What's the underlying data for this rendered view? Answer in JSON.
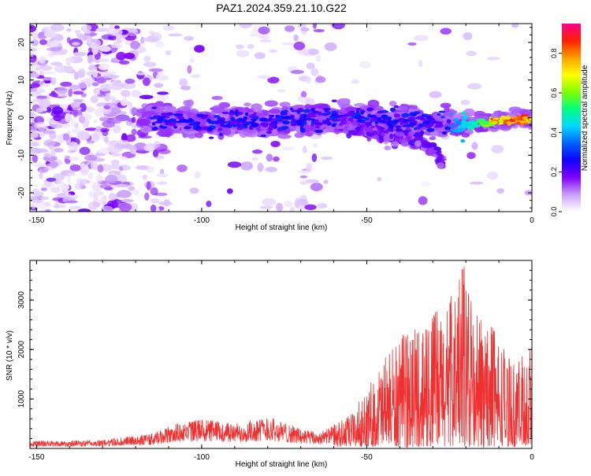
{
  "figure": {
    "title": "PAZ1.2024.359.21.10.G22"
  },
  "chart_data": [
    {
      "type": "heatmap",
      "xlabel": "Height of straight line (km)",
      "ylabel": "Frequency (Hz)",
      "xlim": [
        -152,
        0
      ],
      "ylim": [
        -25,
        25
      ],
      "x_ticks": [
        "-150",
        "-100",
        "-50",
        "0"
      ],
      "y_ticks": [
        "20",
        "10",
        "0",
        "-10",
        "-20"
      ],
      "colorbar": {
        "label": "Normalized spectral amplitude",
        "range": [
          0,
          0.95
        ],
        "ticks": [
          "0.0",
          "0.2",
          "0.4",
          "0.6",
          "0.8"
        ],
        "colormap": [
          "#ffffff",
          "#c8a0ff",
          "#8000ff",
          "#1000ff",
          "#0060ff",
          "#00d8ff",
          "#00ff80",
          "#80ff00",
          "#ffff00",
          "#ffa000",
          "#ff2000",
          "#ff0090"
        ]
      },
      "ridge": [
        {
          "x": -115,
          "y": -0.8
        },
        {
          "x": -100,
          "y": -1.0
        },
        {
          "x": -80,
          "y": -1.0
        },
        {
          "x": -60,
          "y": 0.0
        },
        {
          "x": -45,
          "y": -1.0
        },
        {
          "x": -30,
          "y": -1.5
        },
        {
          "x": -20,
          "y": -2.0
        },
        {
          "x": -10,
          "y": -0.8
        },
        {
          "x": 0,
          "y": -0.5
        }
      ],
      "secondary_branch": [
        {
          "x": -58,
          "y": -2
        },
        {
          "x": -48,
          "y": -4
        },
        {
          "x": -38,
          "y": -6
        },
        {
          "x": -30,
          "y": -8
        },
        {
          "x": -27,
          "y": -12
        }
      ]
    },
    {
      "type": "line",
      "xlabel": "Height of straight line (km)",
      "ylabel": "SNR (10 * v/v)",
      "xlim": [
        -152,
        0
      ],
      "ylim": [
        0,
        3800
      ],
      "x_ticks": [
        "-150",
        "-100",
        "-50",
        "0"
      ],
      "y_ticks": [
        "1000",
        "2000",
        "3000"
      ],
      "color": "#f03030",
      "envelope": [
        {
          "x": -152,
          "y": 150
        },
        {
          "x": -130,
          "y": 170
        },
        {
          "x": -115,
          "y": 300
        },
        {
          "x": -108,
          "y": 500
        },
        {
          "x": -100,
          "y": 600
        },
        {
          "x": -90,
          "y": 500
        },
        {
          "x": -80,
          "y": 650
        },
        {
          "x": -70,
          "y": 400
        },
        {
          "x": -65,
          "y": 330
        },
        {
          "x": -60,
          "y": 450
        },
        {
          "x": -55,
          "y": 650
        },
        {
          "x": -50,
          "y": 1100
        },
        {
          "x": -46,
          "y": 1700
        },
        {
          "x": -40,
          "y": 2200
        },
        {
          "x": -35,
          "y": 2500
        },
        {
          "x": -30,
          "y": 2700
        },
        {
          "x": -25,
          "y": 3000
        },
        {
          "x": -21,
          "y": 3800
        },
        {
          "x": -18,
          "y": 2900
        },
        {
          "x": -14,
          "y": 2600
        },
        {
          "x": -10,
          "y": 2300
        },
        {
          "x": -6,
          "y": 1700
        },
        {
          "x": -3,
          "y": 1800
        },
        {
          "x": 0,
          "y": 2300
        }
      ]
    }
  ]
}
